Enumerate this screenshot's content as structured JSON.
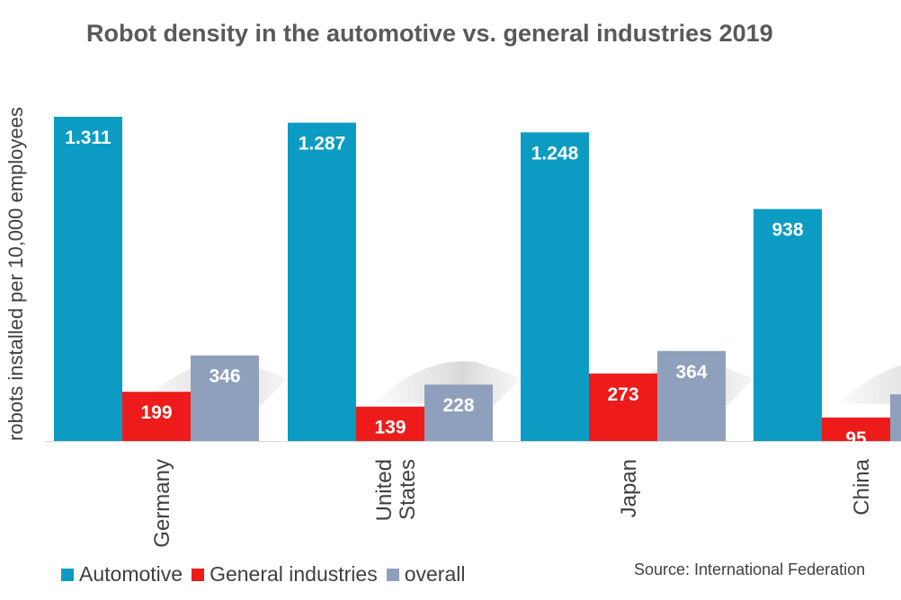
{
  "chart_data": {
    "type": "bar",
    "title": "Robot density in the automotive vs. general industries 2019",
    "ylabel": "robots installed per 10,000 employees",
    "categories": [
      [
        "Germany"
      ],
      [
        "United",
        "States"
      ],
      [
        "Japan"
      ],
      [
        "China"
      ]
    ],
    "series": [
      {
        "name": "Automotive",
        "color": "#0c9cc3",
        "values": [
          1311,
          1287,
          1248,
          938
        ],
        "labels": [
          "1.311",
          "1.287",
          "1.248",
          "938"
        ]
      },
      {
        "name": "General industries",
        "color": "#ee1b1b",
        "values": [
          199,
          139,
          273,
          95
        ],
        "labels": [
          "199",
          "139",
          "273",
          "95"
        ]
      },
      {
        "name": "overall",
        "color": "#8fa0bc",
        "values": [
          346,
          228,
          364,
          null
        ],
        "labels": [
          "346",
          "228",
          "364",
          ""
        ]
      }
    ],
    "ylim": [
      0,
      1400
    ],
    "grid": false,
    "legend_position": "bottom-left"
  },
  "source": "Source: International Federation"
}
